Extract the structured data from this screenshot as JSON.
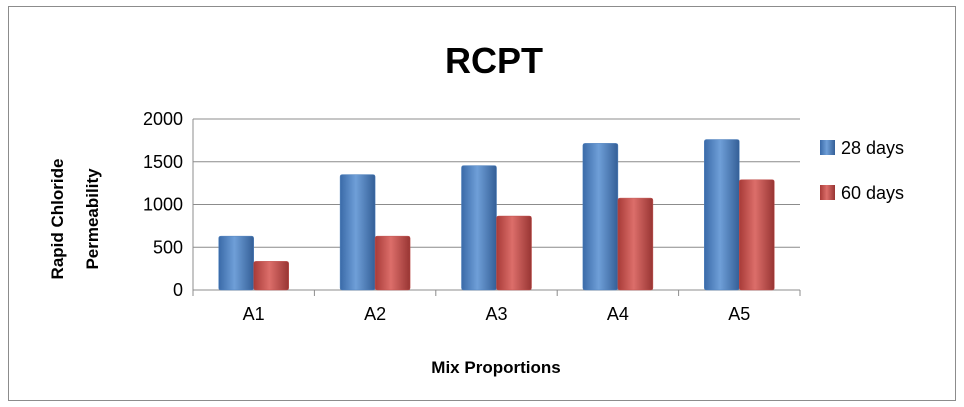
{
  "chart_data": {
    "type": "bar",
    "title": "RCPT",
    "xlabel": "Mix Proportions",
    "ylabel": "Rapid Chloride Permeability",
    "ylabel_lines": [
      "Rapid Chloride",
      "Permeability"
    ],
    "categories": [
      "A1",
      "A2",
      "A3",
      "A4",
      "A5"
    ],
    "series": [
      {
        "name": "28 days",
        "values": [
          630,
          1350,
          1455,
          1715,
          1760
        ],
        "color": "#4f81bd"
      },
      {
        "name": "60 days",
        "values": [
          335,
          630,
          865,
          1075,
          1290
        ],
        "color": "#c0504d"
      }
    ],
    "ylim": [
      0,
      2000
    ],
    "yticks": [
      0,
      500,
      1000,
      1500,
      2000
    ],
    "grid": true,
    "legend_position": "right"
  }
}
